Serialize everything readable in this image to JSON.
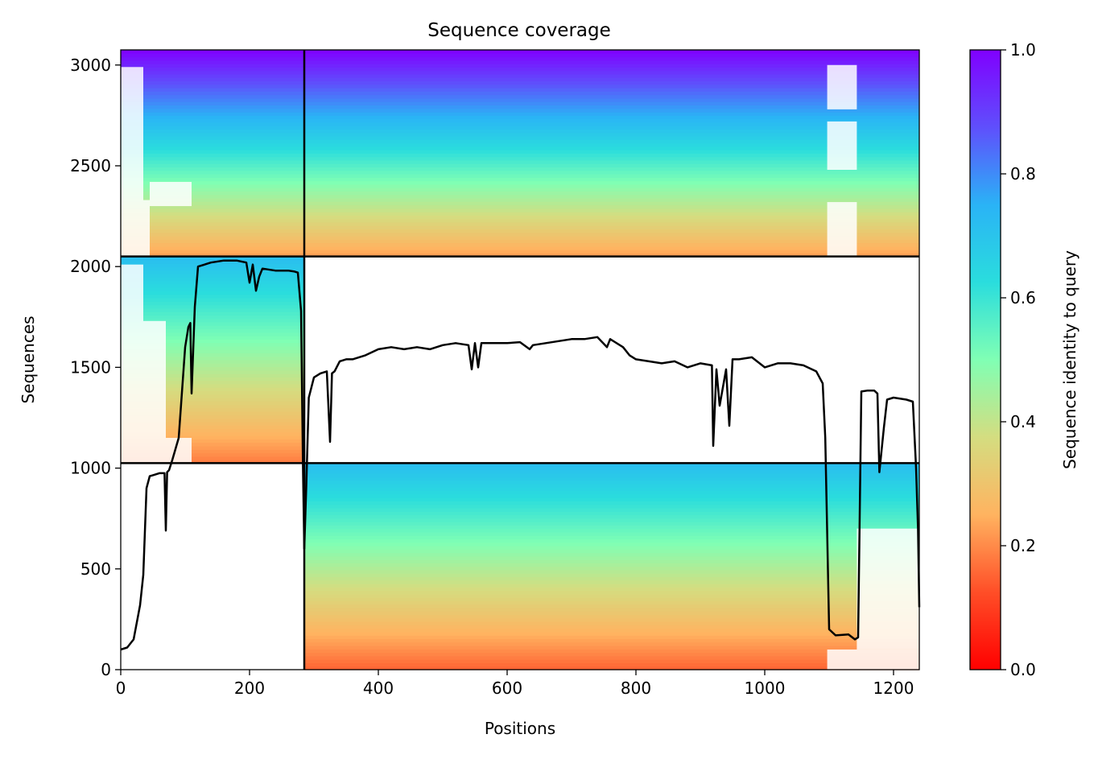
{
  "chart_data": {
    "type": "heatmap",
    "title": "Sequence coverage",
    "xlabel": "Positions",
    "ylabel": "Sequences",
    "xlim": [
      0,
      1240
    ],
    "ylim": [
      0,
      3075
    ],
    "x_ticks": [
      0,
      200,
      400,
      600,
      800,
      1000,
      1200
    ],
    "y_ticks": [
      0,
      500,
      1000,
      1500,
      2000,
      2500,
      3000
    ],
    "colorbar": {
      "label": "Sequence identity to query",
      "range": [
        0,
        1
      ],
      "ticks": [
        0.0,
        0.2,
        0.4,
        0.6,
        0.8,
        1.0
      ],
      "tick_labels": [
        "0.0",
        "0.2",
        "0.4",
        "0.6",
        "0.8",
        "1.0"
      ],
      "colormap": "rainbow_r"
    },
    "chain_boundary_x": 285,
    "block_boundaries_y": [
      1025,
      2050
    ],
    "blocks": [
      {
        "name": "block-1",
        "y_range": [
          0,
          1025
        ],
        "x_range": [
          285,
          1240
        ],
        "identity_range": [
          0.15,
          0.72
        ]
      },
      {
        "name": "block-2",
        "y_range": [
          1025,
          2050
        ],
        "x_range": [
          0,
          285
        ],
        "identity_range": [
          0.18,
          0.72
        ]
      },
      {
        "name": "block-3",
        "y_range": [
          2050,
          3075
        ],
        "x_range": [
          0,
          1240
        ],
        "identity_range": [
          0.22,
          1.0
        ]
      }
    ],
    "coverage_line": {
      "x": [
        0,
        10,
        20,
        30,
        35,
        40,
        45,
        50,
        60,
        68,
        70,
        72,
        75,
        80,
        90,
        100,
        105,
        108,
        110,
        115,
        120,
        140,
        160,
        180,
        195,
        200,
        205,
        210,
        215,
        220,
        240,
        260,
        270,
        275,
        280,
        283,
        285,
        288,
        292,
        300,
        310,
        320,
        325,
        328,
        332,
        340,
        350,
        360,
        380,
        400,
        420,
        440,
        460,
        480,
        500,
        520,
        540,
        545,
        550,
        555,
        560,
        580,
        600,
        620,
        635,
        640,
        660,
        680,
        700,
        720,
        740,
        755,
        760,
        780,
        790,
        800,
        840,
        860,
        880,
        900,
        918,
        920,
        925,
        930,
        940,
        945,
        950,
        960,
        980,
        1000,
        1020,
        1040,
        1060,
        1080,
        1090,
        1094,
        1100,
        1110,
        1130,
        1140,
        1145,
        1150,
        1160,
        1170,
        1175,
        1178,
        1185,
        1190,
        1200,
        1220,
        1230,
        1235,
        1238,
        1240
      ],
      "y": [
        100,
        110,
        150,
        320,
        470,
        900,
        960,
        965,
        975,
        975,
        690,
        980,
        990,
        1040,
        1150,
        1600,
        1700,
        1720,
        1370,
        1800,
        2000,
        2020,
        2030,
        2030,
        2020,
        1920,
        2010,
        1880,
        1950,
        1990,
        1980,
        1980,
        1975,
        1970,
        1780,
        1000,
        600,
        900,
        1350,
        1450,
        1470,
        1480,
        1130,
        1470,
        1480,
        1530,
        1540,
        1540,
        1560,
        1590,
        1600,
        1590,
        1600,
        1590,
        1610,
        1620,
        1610,
        1490,
        1620,
        1500,
        1620,
        1620,
        1620,
        1625,
        1590,
        1610,
        1620,
        1630,
        1640,
        1640,
        1650,
        1600,
        1640,
        1600,
        1560,
        1540,
        1520,
        1530,
        1500,
        1520,
        1510,
        1110,
        1490,
        1310,
        1490,
        1210,
        1540,
        1540,
        1550,
        1500,
        1520,
        1520,
        1510,
        1480,
        1420,
        1150,
        200,
        170,
        175,
        150,
        160,
        1380,
        1385,
        1385,
        1370,
        980,
        1200,
        1340,
        1350,
        1340,
        1330,
        1000,
        700,
        310
      ]
    }
  }
}
